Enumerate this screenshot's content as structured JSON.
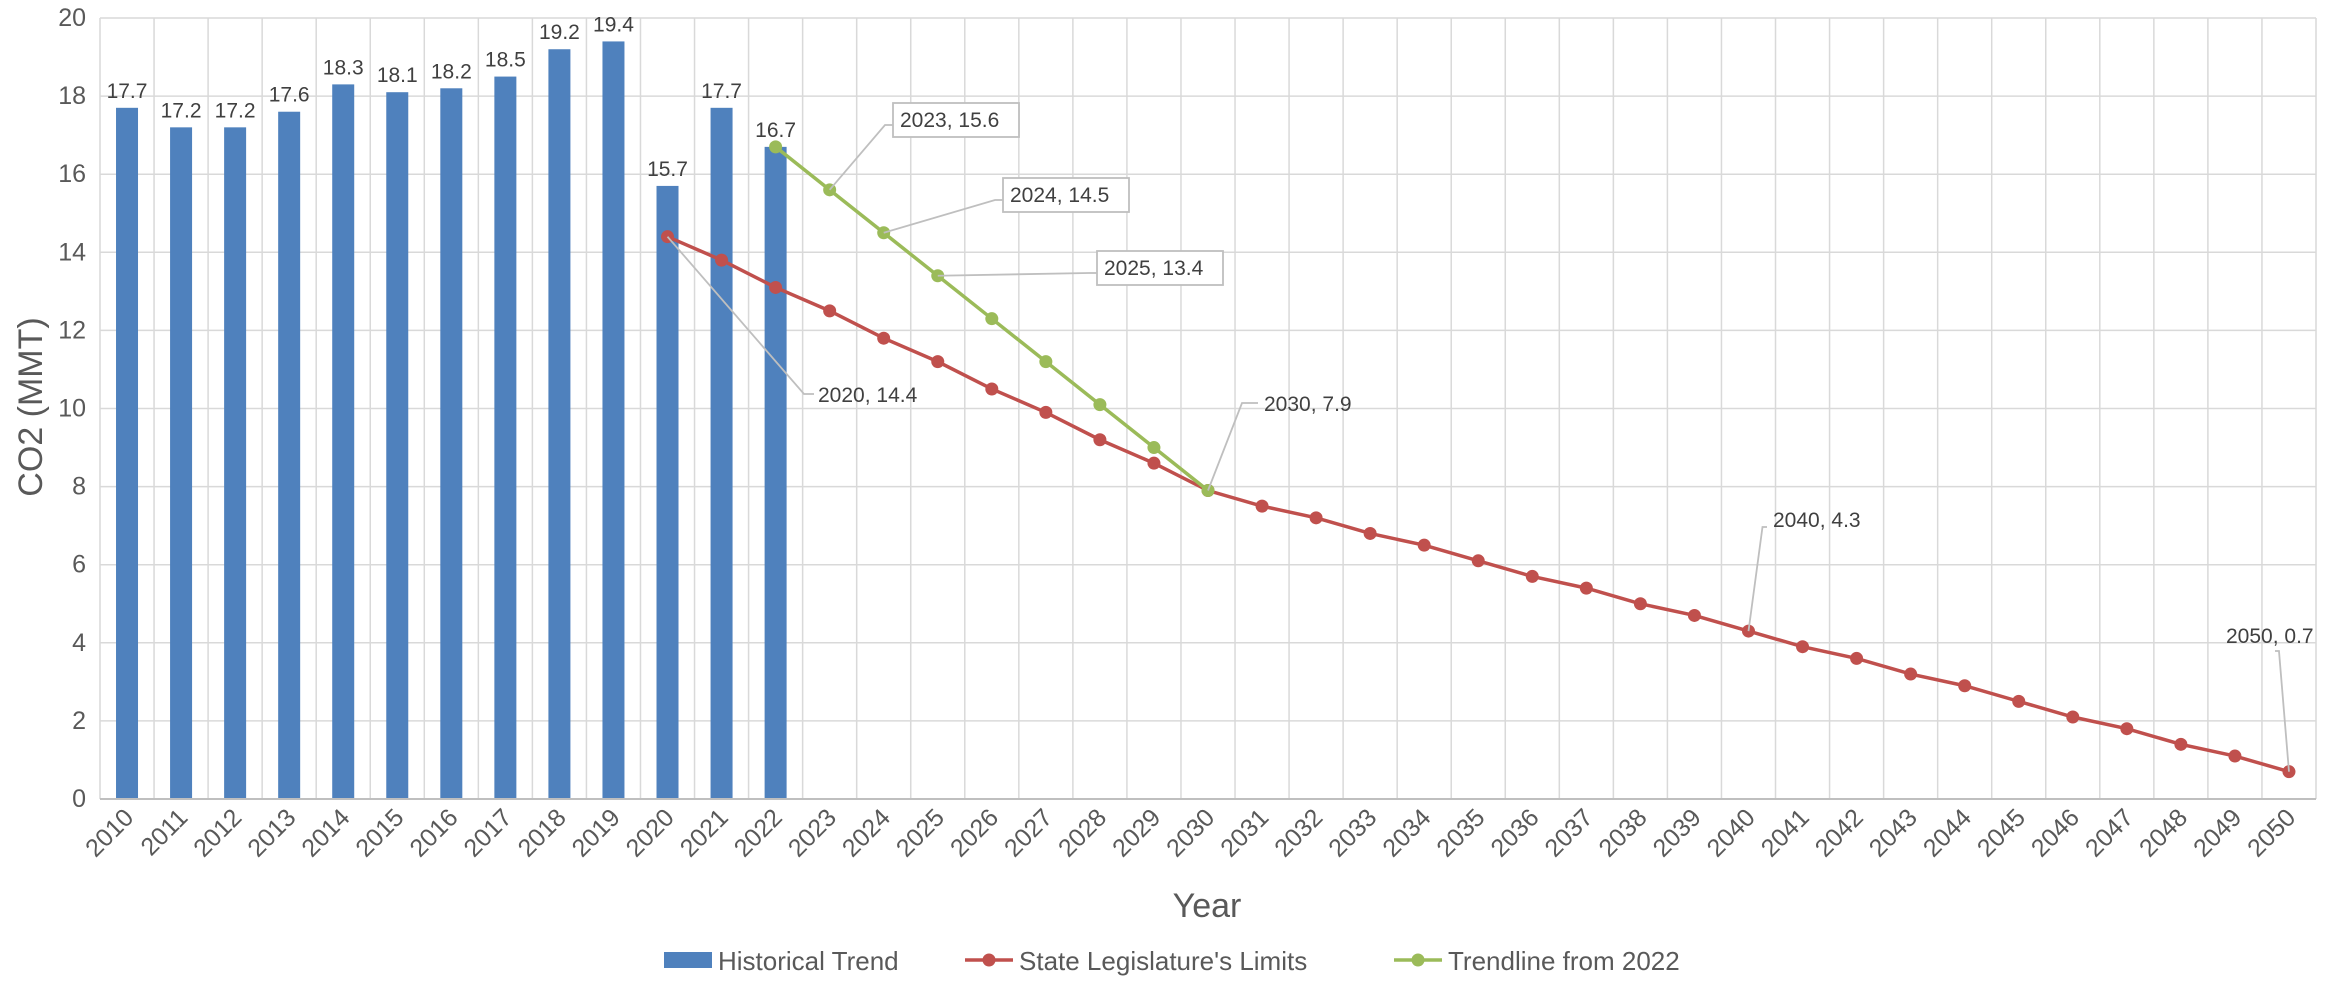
{
  "chart_data": {
    "type": "bar",
    "title": "",
    "xlabel": "Year",
    "ylabel": "CO2 (MMT)",
    "ylim": [
      0,
      20
    ],
    "yticks": [
      0,
      2,
      4,
      6,
      8,
      10,
      12,
      14,
      16,
      18,
      20
    ],
    "grid": true,
    "legend_position": "bottom",
    "categories": [
      "2010",
      "2011",
      "2012",
      "2013",
      "2014",
      "2015",
      "2016",
      "2017",
      "2018",
      "2019",
      "2020",
      "2021",
      "2022",
      "2023",
      "2024",
      "2025",
      "2026",
      "2027",
      "2028",
      "2029",
      "2030",
      "2031",
      "2032",
      "2033",
      "2034",
      "2035",
      "2036",
      "2037",
      "2038",
      "2039",
      "2040",
      "2041",
      "2042",
      "2043",
      "2044",
      "2045",
      "2046",
      "2047",
      "2048",
      "2049",
      "2050"
    ],
    "series": [
      {
        "name": "Historical Trend",
        "type": "bar",
        "color": "#4f81bd",
        "x": [
          "2010",
          "2011",
          "2012",
          "2013",
          "2014",
          "2015",
          "2016",
          "2017",
          "2018",
          "2019",
          "2020",
          "2021",
          "2022"
        ],
        "values": [
          17.7,
          17.2,
          17.2,
          17.6,
          18.3,
          18.1,
          18.2,
          18.5,
          19.2,
          19.4,
          15.7,
          17.7,
          16.7
        ],
        "labels": [
          "17.7",
          "17.2",
          "17.2",
          "17.6",
          "18.3",
          "18.1",
          "18.2",
          "18.5",
          "19.2",
          "19.4",
          "15.7",
          "17.7",
          "16.7"
        ]
      },
      {
        "name": "State Legislature's Limits",
        "type": "line",
        "color": "#c0504d",
        "x": [
          "2020",
          "2021",
          "2022",
          "2023",
          "2024",
          "2025",
          "2026",
          "2027",
          "2028",
          "2029",
          "2030",
          "2031",
          "2032",
          "2033",
          "2034",
          "2035",
          "2036",
          "2037",
          "2038",
          "2039",
          "2040",
          "2041",
          "2042",
          "2043",
          "2044",
          "2045",
          "2046",
          "2047",
          "2048",
          "2049",
          "2050"
        ],
        "values": [
          14.4,
          13.8,
          13.1,
          12.5,
          11.8,
          11.2,
          10.5,
          9.9,
          9.2,
          8.6,
          7.9,
          7.5,
          7.2,
          6.8,
          6.5,
          6.1,
          5.7,
          5.4,
          5.0,
          4.7,
          4.3,
          3.9,
          3.6,
          3.2,
          2.9,
          2.5,
          2.1,
          1.8,
          1.4,
          1.1,
          0.7
        ]
      },
      {
        "name": "Trendline from 2022",
        "type": "line",
        "color": "#9bbb59",
        "x": [
          "2022",
          "2023",
          "2024",
          "2025",
          "2026",
          "2027",
          "2028",
          "2029",
          "2030"
        ],
        "values": [
          16.7,
          15.6,
          14.5,
          13.4,
          12.3,
          11.2,
          10.1,
          9.0,
          7.9
        ]
      }
    ],
    "annotations": [
      {
        "text": "2023, 15.6",
        "x": "2023",
        "y": 15.6,
        "boxed": true,
        "color": "#000000"
      },
      {
        "text": "2024, 14.5",
        "x": "2024",
        "y": 14.5,
        "boxed": true,
        "color": "#404040"
      },
      {
        "text": "2025, 13.4",
        "x": "2025",
        "y": 13.4,
        "boxed": true,
        "color": "#ff0000"
      },
      {
        "text": "2020, 14.4",
        "x": "2020",
        "y": 14.4,
        "boxed": false,
        "color": "#404040"
      },
      {
        "text": "2030, 7.9",
        "x": "2030",
        "y": 7.9,
        "boxed": false,
        "color": "#404040"
      },
      {
        "text": "2040, 4.3",
        "x": "2040",
        "y": 4.3,
        "boxed": false,
        "color": "#404040"
      },
      {
        "text": "2050, 0.7",
        "x": "2050",
        "y": 0.7,
        "boxed": false,
        "color": "#404040"
      }
    ],
    "highlighted_label": {
      "category": "2022",
      "color": "#ff0000"
    }
  }
}
